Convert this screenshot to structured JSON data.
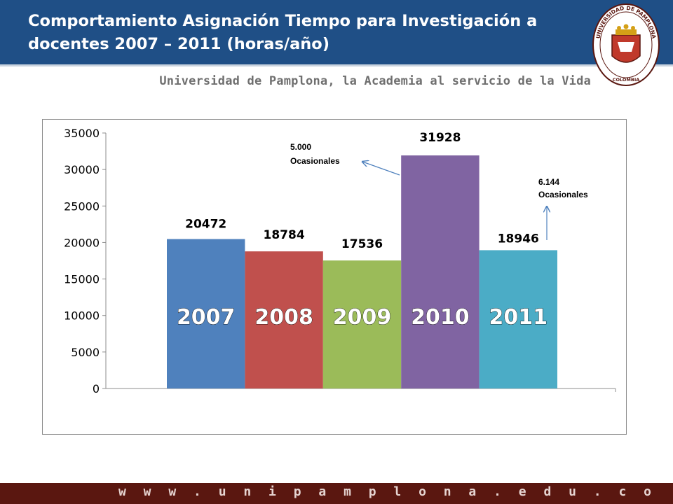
{
  "slide": {
    "title": "Comportamiento Asignación Tiempo para Investigación a docentes 2007 – 2011 (horas/año)",
    "subtitle": "Universidad de Pamplona, la Academia al servicio de la Vida",
    "footer_url": "w w w . u n i p a m p l o n a . e d u . c o",
    "logo": {
      "ring_text": "UNIVERSIDAD DE PAMPLONA",
      "bottom_text": "COLOMBIA",
      "icon": "university-coat-of-arms"
    },
    "colors": {
      "header": "#1f4f86",
      "footer": "#5a1710"
    }
  },
  "chart_data": {
    "type": "bar",
    "categories": [
      "2007",
      "2008",
      "2009",
      "2010",
      "2011"
    ],
    "values": [
      20472,
      18784,
      17536,
      31928,
      18946
    ],
    "value_labels": [
      "20472",
      "18784",
      "17536",
      "31928",
      "18946"
    ],
    "colors": [
      "#4f81bd",
      "#c0504d",
      "#9bbb59",
      "#8064a2",
      "#4bacc6"
    ],
    "ylim": [
      0,
      35000
    ],
    "yticks": [
      0,
      5000,
      10000,
      15000,
      20000,
      25000,
      30000,
      35000
    ],
    "ytick_labels": [
      "0",
      "5000",
      "10000",
      "15000",
      "20000",
      "25000",
      "30000",
      "35000"
    ],
    "grid": false,
    "annotations": [
      {
        "line1": "5.000",
        "line2": "Ocasionales",
        "category": "2010"
      },
      {
        "line1": "6.144",
        "line2": "Ocasionales",
        "category": "2011"
      }
    ]
  }
}
